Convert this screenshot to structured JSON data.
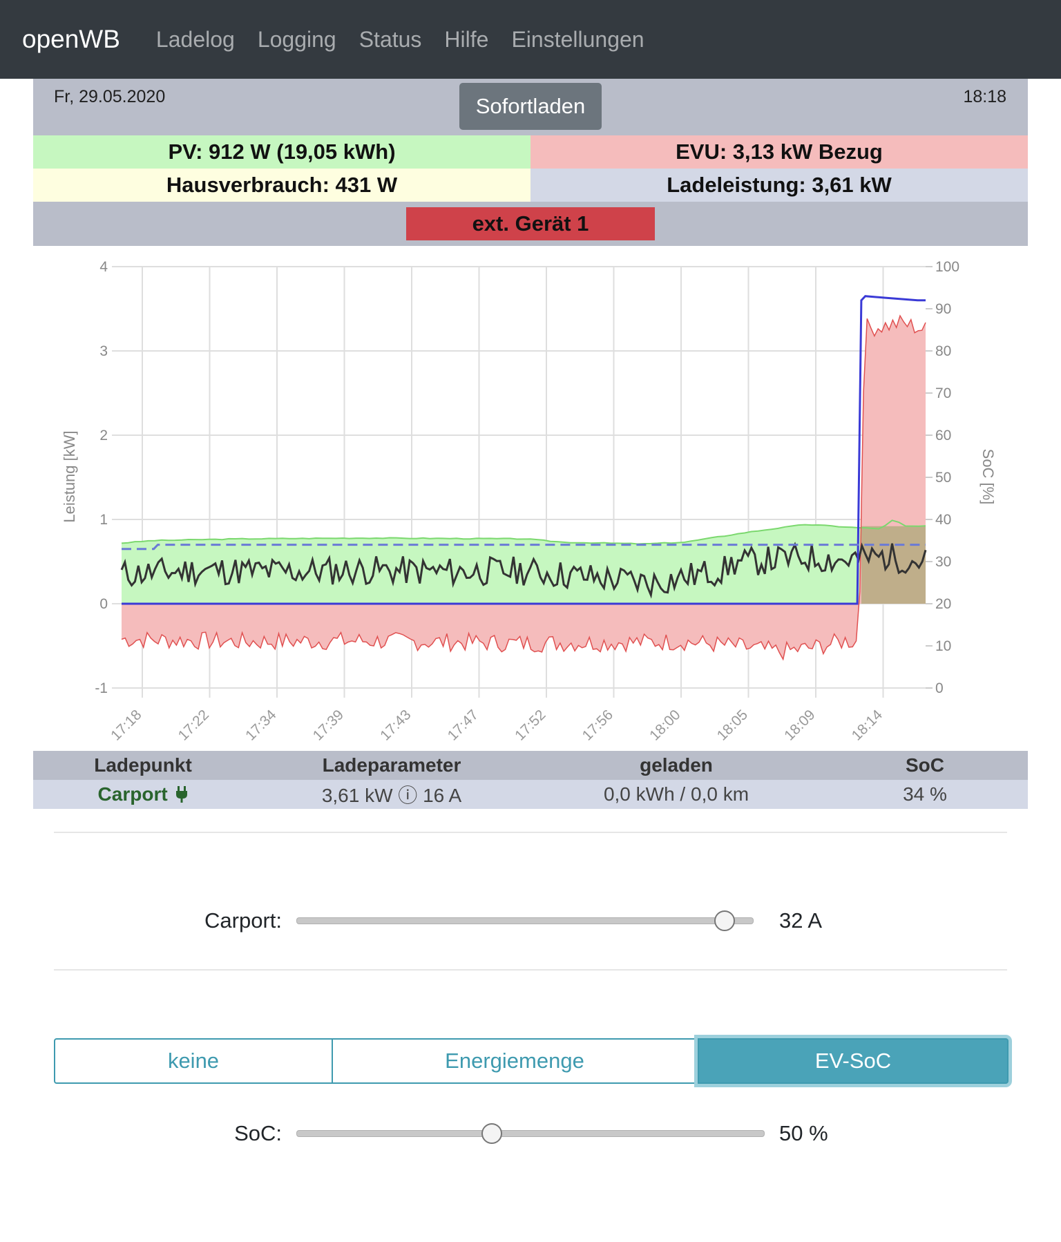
{
  "nav": {
    "brand": "openWB",
    "links": [
      "Ladelog",
      "Logging",
      "Status",
      "Hilfe",
      "Einstellungen"
    ]
  },
  "status": {
    "date": "Fr, 29.05.2020",
    "time": "18:18",
    "sofort_button": "Sofortladen",
    "pv": "PV: 912 W (19,05 kWh)",
    "evu": "EVU: 3,13 kW Bezug",
    "hausverbrauch": "Hausverbrauch: 431 W",
    "ladeleistung": "Ladeleistung: 3,61 kW",
    "ext_device": "ext. Gerät 1",
    "colors": {
      "pv": "#c6f7c0",
      "evu": "#f5bcbc",
      "haus": "#fefee0",
      "lade": "#d3d8e6",
      "ext": "#cf424a"
    }
  },
  "chart_data": {
    "type": "line",
    "ylabel_left": "Leistung [kW]",
    "ylabel_right": "SoC [%]",
    "ylim_left": [
      -1,
      4
    ],
    "ylim_right": [
      0,
      100
    ],
    "yticks_left": [
      "4",
      "3",
      "2",
      "1",
      "0",
      "-1"
    ],
    "yticks_right": [
      "100",
      "90",
      "80",
      "70",
      "60",
      "50",
      "40",
      "30",
      "20",
      "10",
      "0"
    ],
    "xticks": [
      "17:18",
      "17:22",
      "17:34",
      "17:39",
      "17:43",
      "17:47",
      "17:52",
      "17:56",
      "18:00",
      "18:05",
      "18:09",
      "18:14"
    ],
    "grid": true,
    "series": [
      {
        "kind": "pv",
        "color": "#7bd86e",
        "fill": "#c6f7c0",
        "x": [
          0,
          0.04,
          0.15,
          0.3,
          0.5,
          0.55,
          0.65,
          0.7,
          0.78,
          0.85,
          0.87,
          0.92,
          0.945,
          0.96,
          0.975,
          1.0
        ],
        "values": [
          0.72,
          0.75,
          0.77,
          0.78,
          0.77,
          0.73,
          0.71,
          0.73,
          0.85,
          0.94,
          0.93,
          0.9,
          0.89,
          1.0,
          0.92,
          0.92
        ]
      },
      {
        "kind": "evu",
        "color": "#e05050",
        "fill": "#f5bcbc",
        "x": [
          0,
          0.15,
          0.3,
          0.5,
          0.7,
          0.76,
          0.82,
          0.86,
          0.9,
          0.917,
          0.924,
          0.93,
          0.97,
          1.0
        ],
        "values": [
          -0.42,
          -0.45,
          -0.44,
          -0.47,
          -0.45,
          -0.5,
          -0.57,
          -0.52,
          -0.44,
          -0.45,
          3.3,
          3.27,
          3.33,
          3.25
        ]
      },
      {
        "kind": "haus",
        "color": "#333333",
        "x": [
          0,
          0.1,
          0.2,
          0.3,
          0.4,
          0.5,
          0.6,
          0.66,
          0.75,
          0.76,
          0.85,
          0.9,
          0.95,
          1.0
        ],
        "values": [
          0.35,
          0.4,
          0.38,
          0.4,
          0.38,
          0.39,
          0.3,
          0.25,
          0.4,
          0.48,
          0.55,
          0.52,
          0.56,
          0.5
        ]
      },
      {
        "kind": "lade",
        "color": "#3a3ad6",
        "x": [
          0,
          0.915,
          0.92,
          0.925,
          0.95,
          0.99,
          1.0
        ],
        "values": [
          0,
          0,
          3.6,
          3.65,
          3.63,
          3.6,
          3.6
        ]
      },
      {
        "kind": "soc",
        "color": "#6a7ad6",
        "dash": true,
        "x": [
          0,
          0.04,
          0.045,
          1.0
        ],
        "values": [
          33,
          33,
          34,
          34
        ]
      }
    ]
  },
  "ladepunkte": {
    "headers": [
      "Ladepunkt",
      "Ladeparameter",
      "geladen",
      "SoC"
    ],
    "rows": [
      {
        "name": "Carport",
        "param": "3,61 kW ⓘ 16 A",
        "geladen": "0,0 kWh / 0,0 km",
        "soc": "34 %"
      }
    ]
  },
  "slider_carport": {
    "label": "Carport:",
    "value": "32 A",
    "fraction": 1.0
  },
  "ziel": {
    "options": [
      "keine",
      "Energiemenge",
      "EV-SoC"
    ],
    "active": "EV-SoC"
  },
  "slider_soc": {
    "label": "SoC:",
    "value": "50 %",
    "fraction": 0.5
  }
}
